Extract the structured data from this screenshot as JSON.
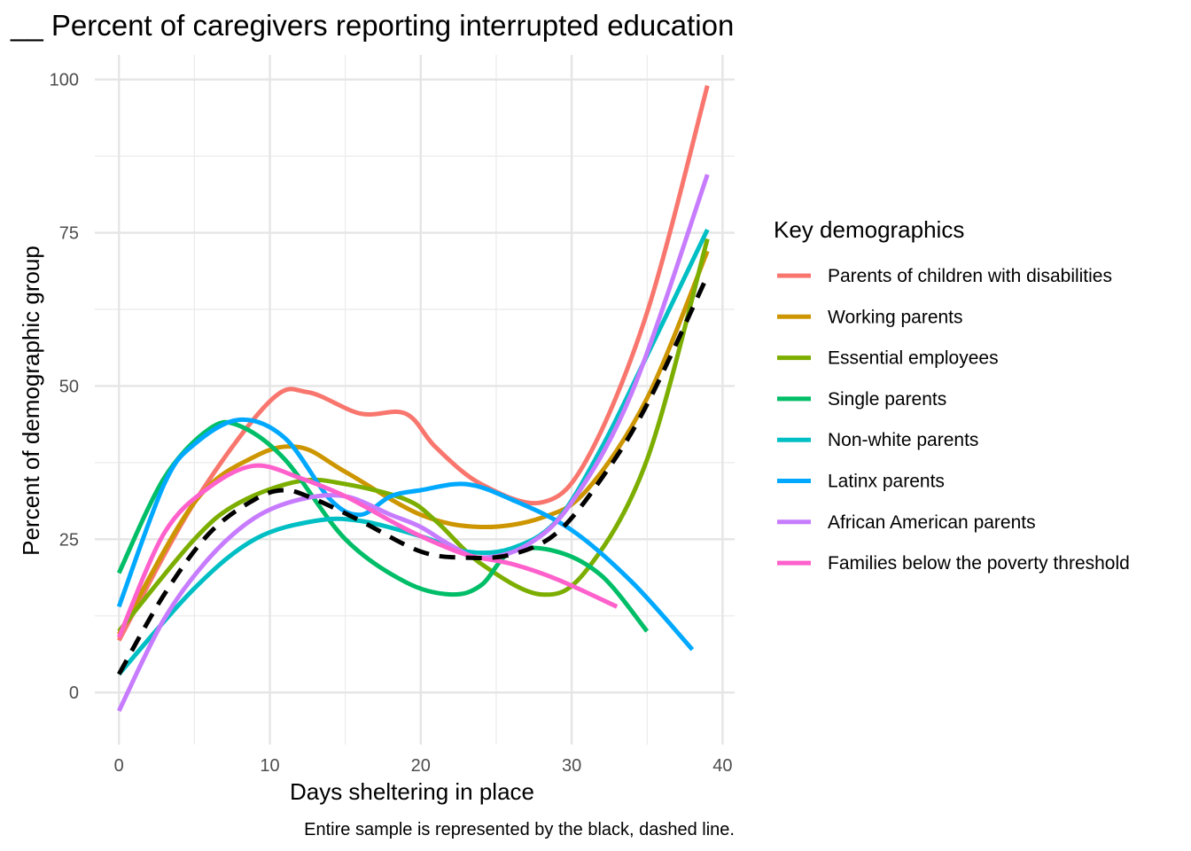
{
  "chart_data": {
    "type": "line",
    "title": "__ Percent of caregivers reporting interrupted education",
    "xlabel": "Days sheltering in place",
    "ylabel": "Percent of demographic group",
    "caption": "Entire sample is represented by the black, dashed line.",
    "xlim": [
      -1.6,
      40.8
    ],
    "ylim": [
      -8.5,
      104
    ],
    "x_ticks": [
      0,
      10,
      20,
      30,
      40
    ],
    "y_ticks": [
      0,
      25,
      50,
      75,
      100
    ],
    "grid": true,
    "legend": {
      "title": "Key demographics",
      "position": "right"
    },
    "series": [
      {
        "name": "Parents of children with disabilities",
        "color": "#F8766D",
        "points": [
          [
            0,
            8.5
          ],
          [
            5,
            31
          ],
          [
            10,
            47.5
          ],
          [
            12.5,
            49
          ],
          [
            16,
            45.5
          ],
          [
            19,
            45.5
          ],
          [
            21,
            40
          ],
          [
            24,
            34
          ],
          [
            28,
            31
          ],
          [
            31,
            38
          ],
          [
            35,
            62
          ],
          [
            39,
            99
          ]
        ]
      },
      {
        "name": "Working parents",
        "color": "#CD9600",
        "points": [
          [
            0,
            9.5
          ],
          [
            5,
            31
          ],
          [
            9,
            38.5
          ],
          [
            12,
            40
          ],
          [
            15,
            36
          ],
          [
            20,
            29
          ],
          [
            24,
            27
          ],
          [
            28,
            28.5
          ],
          [
            31,
            33
          ],
          [
            35,
            48
          ],
          [
            39,
            72
          ]
        ]
      },
      {
        "name": "Essential employees",
        "color": "#7CAE00",
        "points": [
          [
            0,
            10
          ],
          [
            5,
            25
          ],
          [
            8,
            31
          ],
          [
            12,
            34.5
          ],
          [
            15,
            34
          ],
          [
            19,
            31.5
          ],
          [
            21,
            28
          ],
          [
            24,
            21
          ],
          [
            28,
            16
          ],
          [
            31,
            20
          ],
          [
            35,
            38
          ],
          [
            39,
            74
          ]
        ]
      },
      {
        "name": "Single parents",
        "color": "#00BE67",
        "points": [
          [
            0,
            19.5
          ],
          [
            3,
            35
          ],
          [
            6,
            43
          ],
          [
            8,
            43.5
          ],
          [
            11,
            38
          ],
          [
            15,
            25
          ],
          [
            19,
            18
          ],
          [
            22,
            16
          ],
          [
            24,
            17.5
          ],
          [
            26,
            23
          ],
          [
            29,
            23
          ],
          [
            32,
            19
          ],
          [
            35,
            10
          ]
        ]
      },
      {
        "name": "Non-white parents",
        "color": "#00BFC4",
        "points": [
          [
            0,
            3
          ],
          [
            5,
            17
          ],
          [
            9,
            25
          ],
          [
            13,
            28
          ],
          [
            16,
            28
          ],
          [
            20,
            25.5
          ],
          [
            23,
            23
          ],
          [
            26,
            23.5
          ],
          [
            29,
            28
          ],
          [
            32,
            40
          ],
          [
            35,
            55
          ],
          [
            39,
            75.5
          ]
        ]
      },
      {
        "name": "Latinx parents",
        "color": "#00A9FF",
        "points": [
          [
            0,
            14
          ],
          [
            3,
            34
          ],
          [
            5,
            40.5
          ],
          [
            8,
            44.5
          ],
          [
            11,
            41.5
          ],
          [
            14,
            31.5
          ],
          [
            16,
            29
          ],
          [
            18,
            32
          ],
          [
            20,
            33
          ],
          [
            23,
            34
          ],
          [
            26,
            31.5
          ],
          [
            30,
            26.5
          ],
          [
            34,
            18
          ],
          [
            38,
            7
          ]
        ]
      },
      {
        "name": "African American parents",
        "color": "#C77CFF",
        "points": [
          [
            0,
            -3
          ],
          [
            3,
            12
          ],
          [
            6,
            22
          ],
          [
            9,
            28.5
          ],
          [
            12,
            31.5
          ],
          [
            15,
            32
          ],
          [
            18,
            29
          ],
          [
            20,
            27
          ],
          [
            22,
            24
          ],
          [
            24,
            22
          ],
          [
            27,
            24
          ],
          [
            30,
            31
          ],
          [
            34,
            49
          ],
          [
            39,
            84.5
          ]
        ]
      },
      {
        "name": "Families below the poverty threshold",
        "color": "#FF61CC",
        "points": [
          [
            0,
            9
          ],
          [
            3,
            26
          ],
          [
            6,
            33.5
          ],
          [
            9,
            37
          ],
          [
            12,
            35
          ],
          [
            15,
            32
          ],
          [
            18,
            28
          ],
          [
            20,
            25.5
          ],
          [
            23,
            22.5
          ],
          [
            26,
            21
          ],
          [
            29,
            18.5
          ],
          [
            33,
            14
          ]
        ]
      },
      {
        "name": "",
        "color": "#000000",
        "dashed": true,
        "points": [
          [
            0,
            3
          ],
          [
            3,
            16
          ],
          [
            6,
            26
          ],
          [
            9,
            31.5
          ],
          [
            11,
            33
          ],
          [
            13,
            31.5
          ],
          [
            16,
            28
          ],
          [
            20,
            23
          ],
          [
            23,
            22
          ],
          [
            26,
            22.5
          ],
          [
            29,
            26
          ],
          [
            32,
            35
          ],
          [
            35,
            47
          ],
          [
            39,
            68
          ]
        ]
      }
    ]
  }
}
